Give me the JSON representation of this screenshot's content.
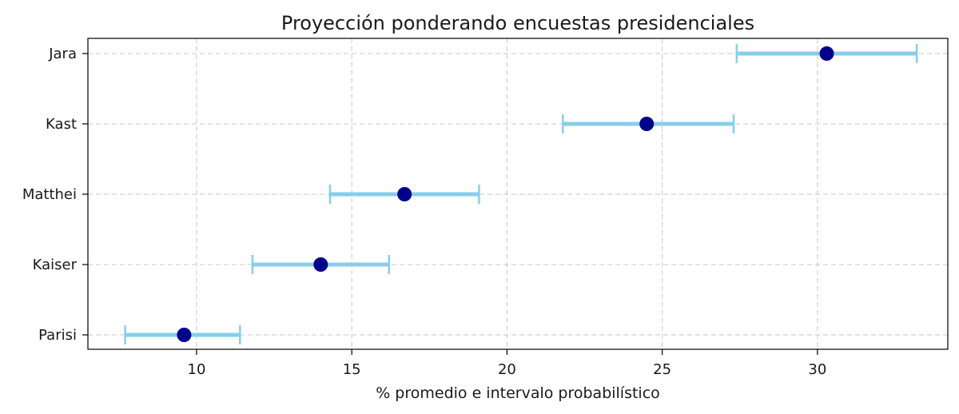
{
  "chart_data": {
    "type": "scatter",
    "title": "Proyección ponderando encuestas presidenciales",
    "xlabel": "% promedio e intervalo probabilístico",
    "ylabel": "",
    "xlim": [
      6.5,
      34.2
    ],
    "x_ticks": [
      10,
      15,
      20,
      25,
      30
    ],
    "grid": true,
    "categories": [
      "Jara",
      "Kast",
      "Matthei",
      "Kaiser",
      "Parisi"
    ],
    "series": [
      {
        "points": [
          {
            "label": "Jara",
            "mean": 30.3,
            "low": 27.4,
            "high": 33.2
          },
          {
            "label": "Kast",
            "mean": 24.5,
            "low": 21.8,
            "high": 27.3
          },
          {
            "label": "Matthei",
            "mean": 16.7,
            "low": 14.3,
            "high": 19.1
          },
          {
            "label": "Kaiser",
            "mean": 14.0,
            "low": 11.8,
            "high": 16.2
          },
          {
            "label": "Parisi",
            "mean": 9.6,
            "low": 7.7,
            "high": 11.4
          }
        ]
      }
    ],
    "colors": {
      "point": "#00008b",
      "errorbar": "#87ceeb",
      "grid": "#c8c8c8"
    }
  }
}
